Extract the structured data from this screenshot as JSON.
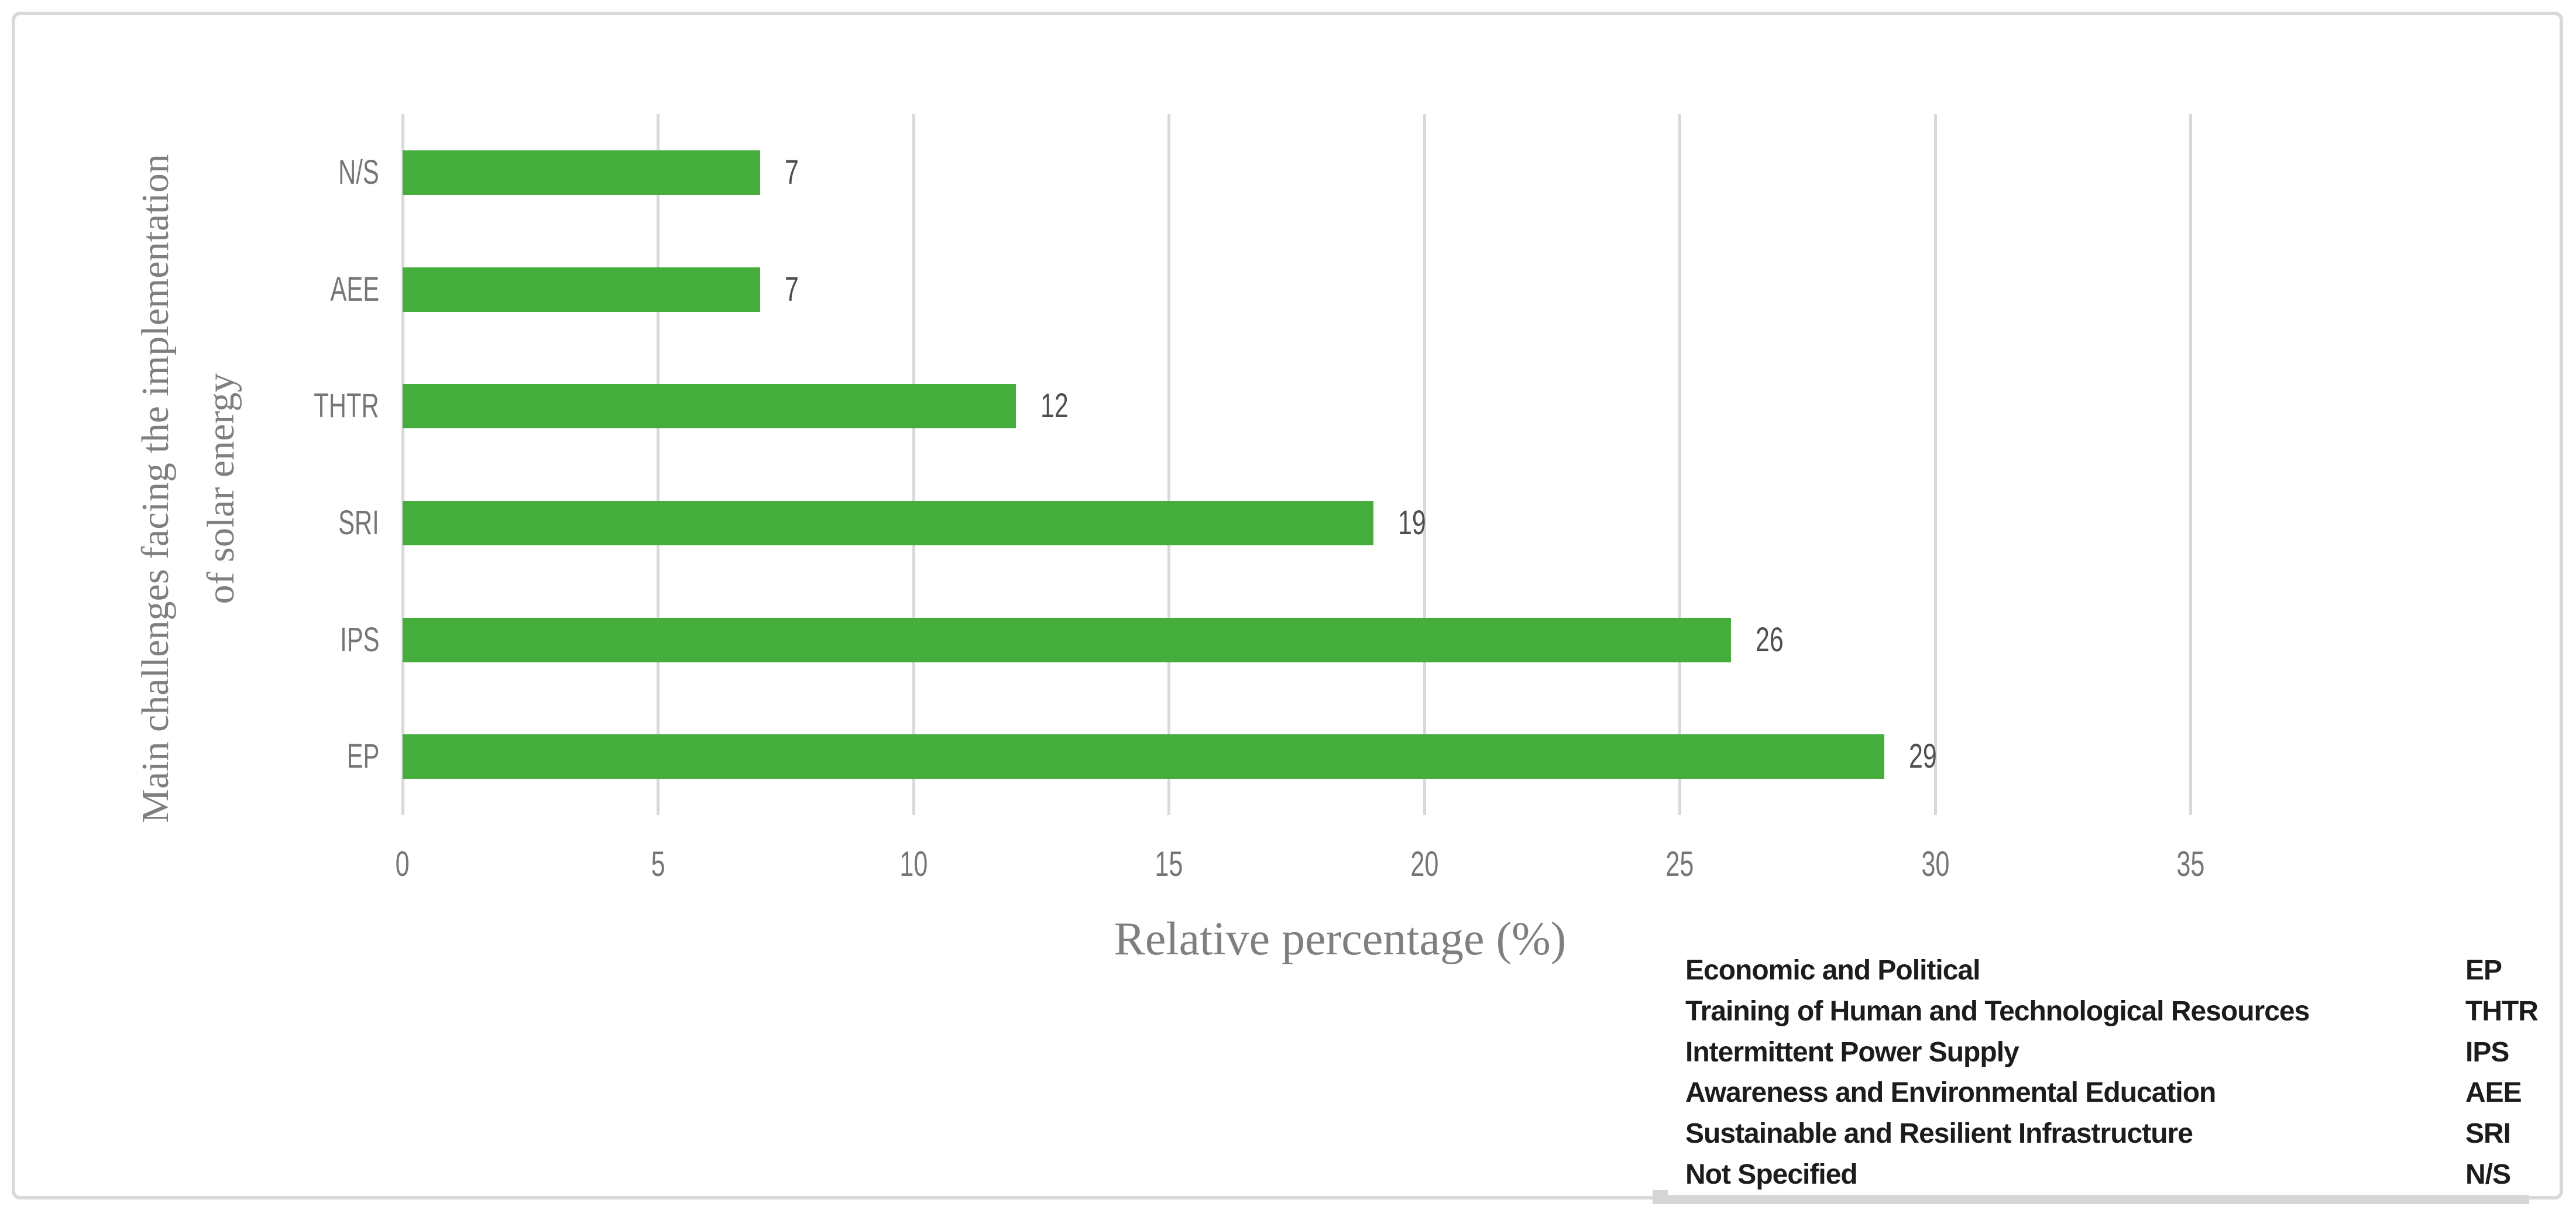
{
  "figure": {
    "background_color": "#ffffff",
    "frame_border_color": "#d9d9d9"
  },
  "chart_data": {
    "type": "bar",
    "orientation": "horizontal",
    "title": "",
    "categories": [
      "N/S",
      "AEE",
      "THTR",
      "SRI",
      "IPS",
      "EP"
    ],
    "values": [
      7,
      7,
      12,
      19,
      26,
      29
    ],
    "data_labels": [
      "7",
      "7",
      "12",
      "19",
      "26",
      "29"
    ],
    "xlabel": "Relative percentage (%)",
    "ylabel_line1": "Main challenges facing the implementation",
    "ylabel_line2": "of solar energy",
    "xlim": [
      0,
      35
    ],
    "xticks": [
      0,
      5,
      10,
      15,
      20,
      25,
      30,
      35
    ],
    "grid": "vertical-gridlines-on",
    "legend_position": "bottom-right-table",
    "bar_color": "#45ad3b",
    "gridline_color": "#d9d9d9",
    "axis_text_color": "#767676",
    "data_label_color": "#4f4f4f"
  },
  "legend": {
    "rows": [
      {
        "label": "Economic and Political",
        "abbr": "EP"
      },
      {
        "label": "Training of Human and Technological Resources",
        "abbr": "THTR"
      },
      {
        "label": "Intermittent Power Supply",
        "abbr": "IPS"
      },
      {
        "label": "Awareness and Environmental Education",
        "abbr": "AEE"
      },
      {
        "label": "Sustainable and Resilient Infrastructure",
        "abbr": "SRI"
      },
      {
        "label": "Not Specified",
        "abbr": "N/S"
      }
    ]
  }
}
